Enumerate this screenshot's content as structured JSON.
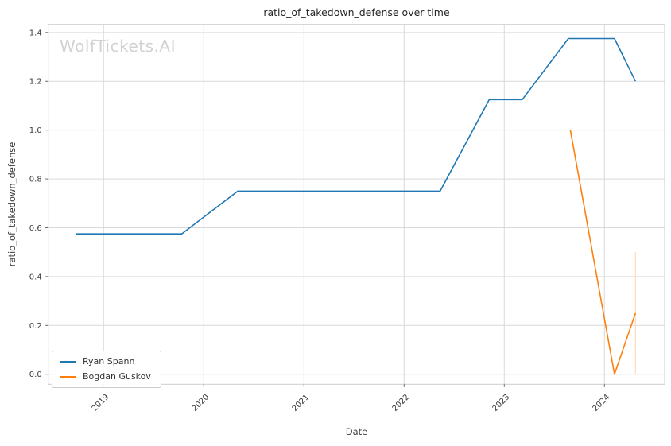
{
  "chart_data": {
    "type": "line",
    "title": "ratio_of_takedown_defense over time",
    "xlabel": "Date",
    "ylabel": "ratio_of_takedown_defense",
    "watermark": "WolfTickets.AI",
    "grid": true,
    "legend_position": "lower left",
    "xlim": [
      2018.448,
      2024.601
    ],
    "ylim": [
      -0.041,
      1.433
    ],
    "x_ticks": [
      2019,
      2020,
      2021,
      2022,
      2023,
      2024
    ],
    "y_ticks": [
      0.0,
      0.2,
      0.4,
      0.6,
      0.8,
      1.0,
      1.2,
      1.4
    ],
    "series": [
      {
        "name": "Ryan Spann",
        "color": "#1f77b4",
        "x": [
          2018.72,
          2019.78,
          2020.34,
          2022.36,
          2022.85,
          2023.18,
          2023.64,
          2024.1,
          2024.31
        ],
        "y": [
          0.575,
          0.575,
          0.75,
          0.75,
          1.125,
          1.125,
          1.375,
          1.375,
          1.2
        ]
      },
      {
        "name": "Bogdan Guskov",
        "color": "#ff7f0e",
        "x": [
          2023.66,
          2024.1,
          2024.31
        ],
        "y": [
          1.0,
          0.0,
          0.25
        ]
      }
    ],
    "error_bar": {
      "series": "Bogdan Guskov",
      "x": 2024.31,
      "y_low": 0.0,
      "y_high": 0.5,
      "color": "#ffddbb"
    },
    "colors": {
      "grid": "#d9d9d9",
      "spine": "#cccccc",
      "tick": "#555555",
      "tick_label": "#3a3a3a",
      "title_text": "#262626",
      "background": "#ffffff"
    }
  }
}
